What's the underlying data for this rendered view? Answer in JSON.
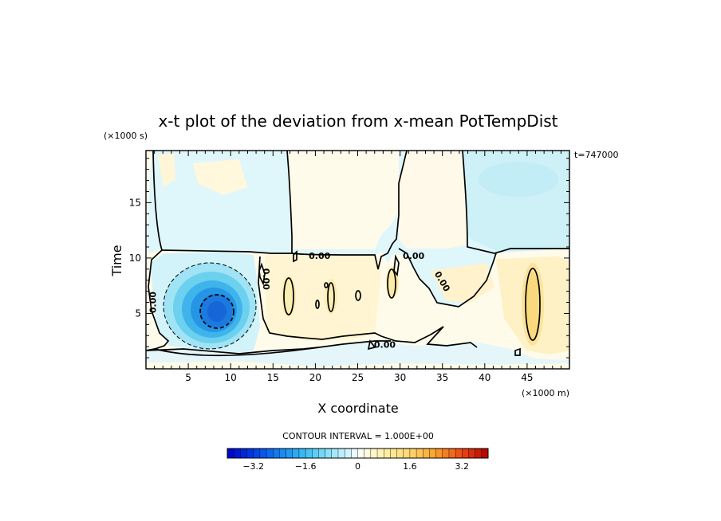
{
  "chart_data": {
    "type": "heatmap",
    "title": "x-t plot of the deviation from x-mean PotTempDist",
    "xlabel": "X coordinate",
    "ylabel": "Time",
    "x_unit": "(×1000 m)",
    "y_unit": "(×1000 s)",
    "time_annotation": "t=747000",
    "xlim": [
      0,
      50
    ],
    "ylim": [
      0,
      19.7
    ],
    "x_ticks": [
      5,
      10,
      15,
      20,
      25,
      30,
      35,
      40,
      45
    ],
    "y_ticks": [
      5,
      10,
      15
    ],
    "contour_interval_text": "CONTOUR INTERVAL = 1.000E+00",
    "contour_labels": [
      {
        "text": "0.00",
        "x": 20.5,
        "y": 10.2
      },
      {
        "text": "0.00",
        "x": 31.6,
        "y": 10.2
      },
      {
        "text": "0.00",
        "x": 35,
        "y": 7.9
      },
      {
        "text": "0.00",
        "x": 14.2,
        "y": 8.1
      },
      {
        "text": "0.00",
        "x": 0.8,
        "y": 6.0
      },
      {
        "text": "0.00",
        "x": 28.2,
        "y": 2.2
      }
    ],
    "colorbar": {
      "min": -4,
      "max": 4,
      "step": 0.2,
      "ticks": [
        -3.2,
        -1.6,
        0,
        1.6,
        3.2
      ],
      "tick_labels": [
        "−3.2",
        "−1.6",
        "0",
        "1.6",
        "3.2"
      ]
    },
    "features": [
      {
        "description": "cold anomaly",
        "center_x": 7.9,
        "center_y": 5.0,
        "min_value": -3.0
      },
      {
        "description": "warm anomaly",
        "center_x": 46.2,
        "center_y": 5.5,
        "max_value": 0.8
      }
    ]
  }
}
